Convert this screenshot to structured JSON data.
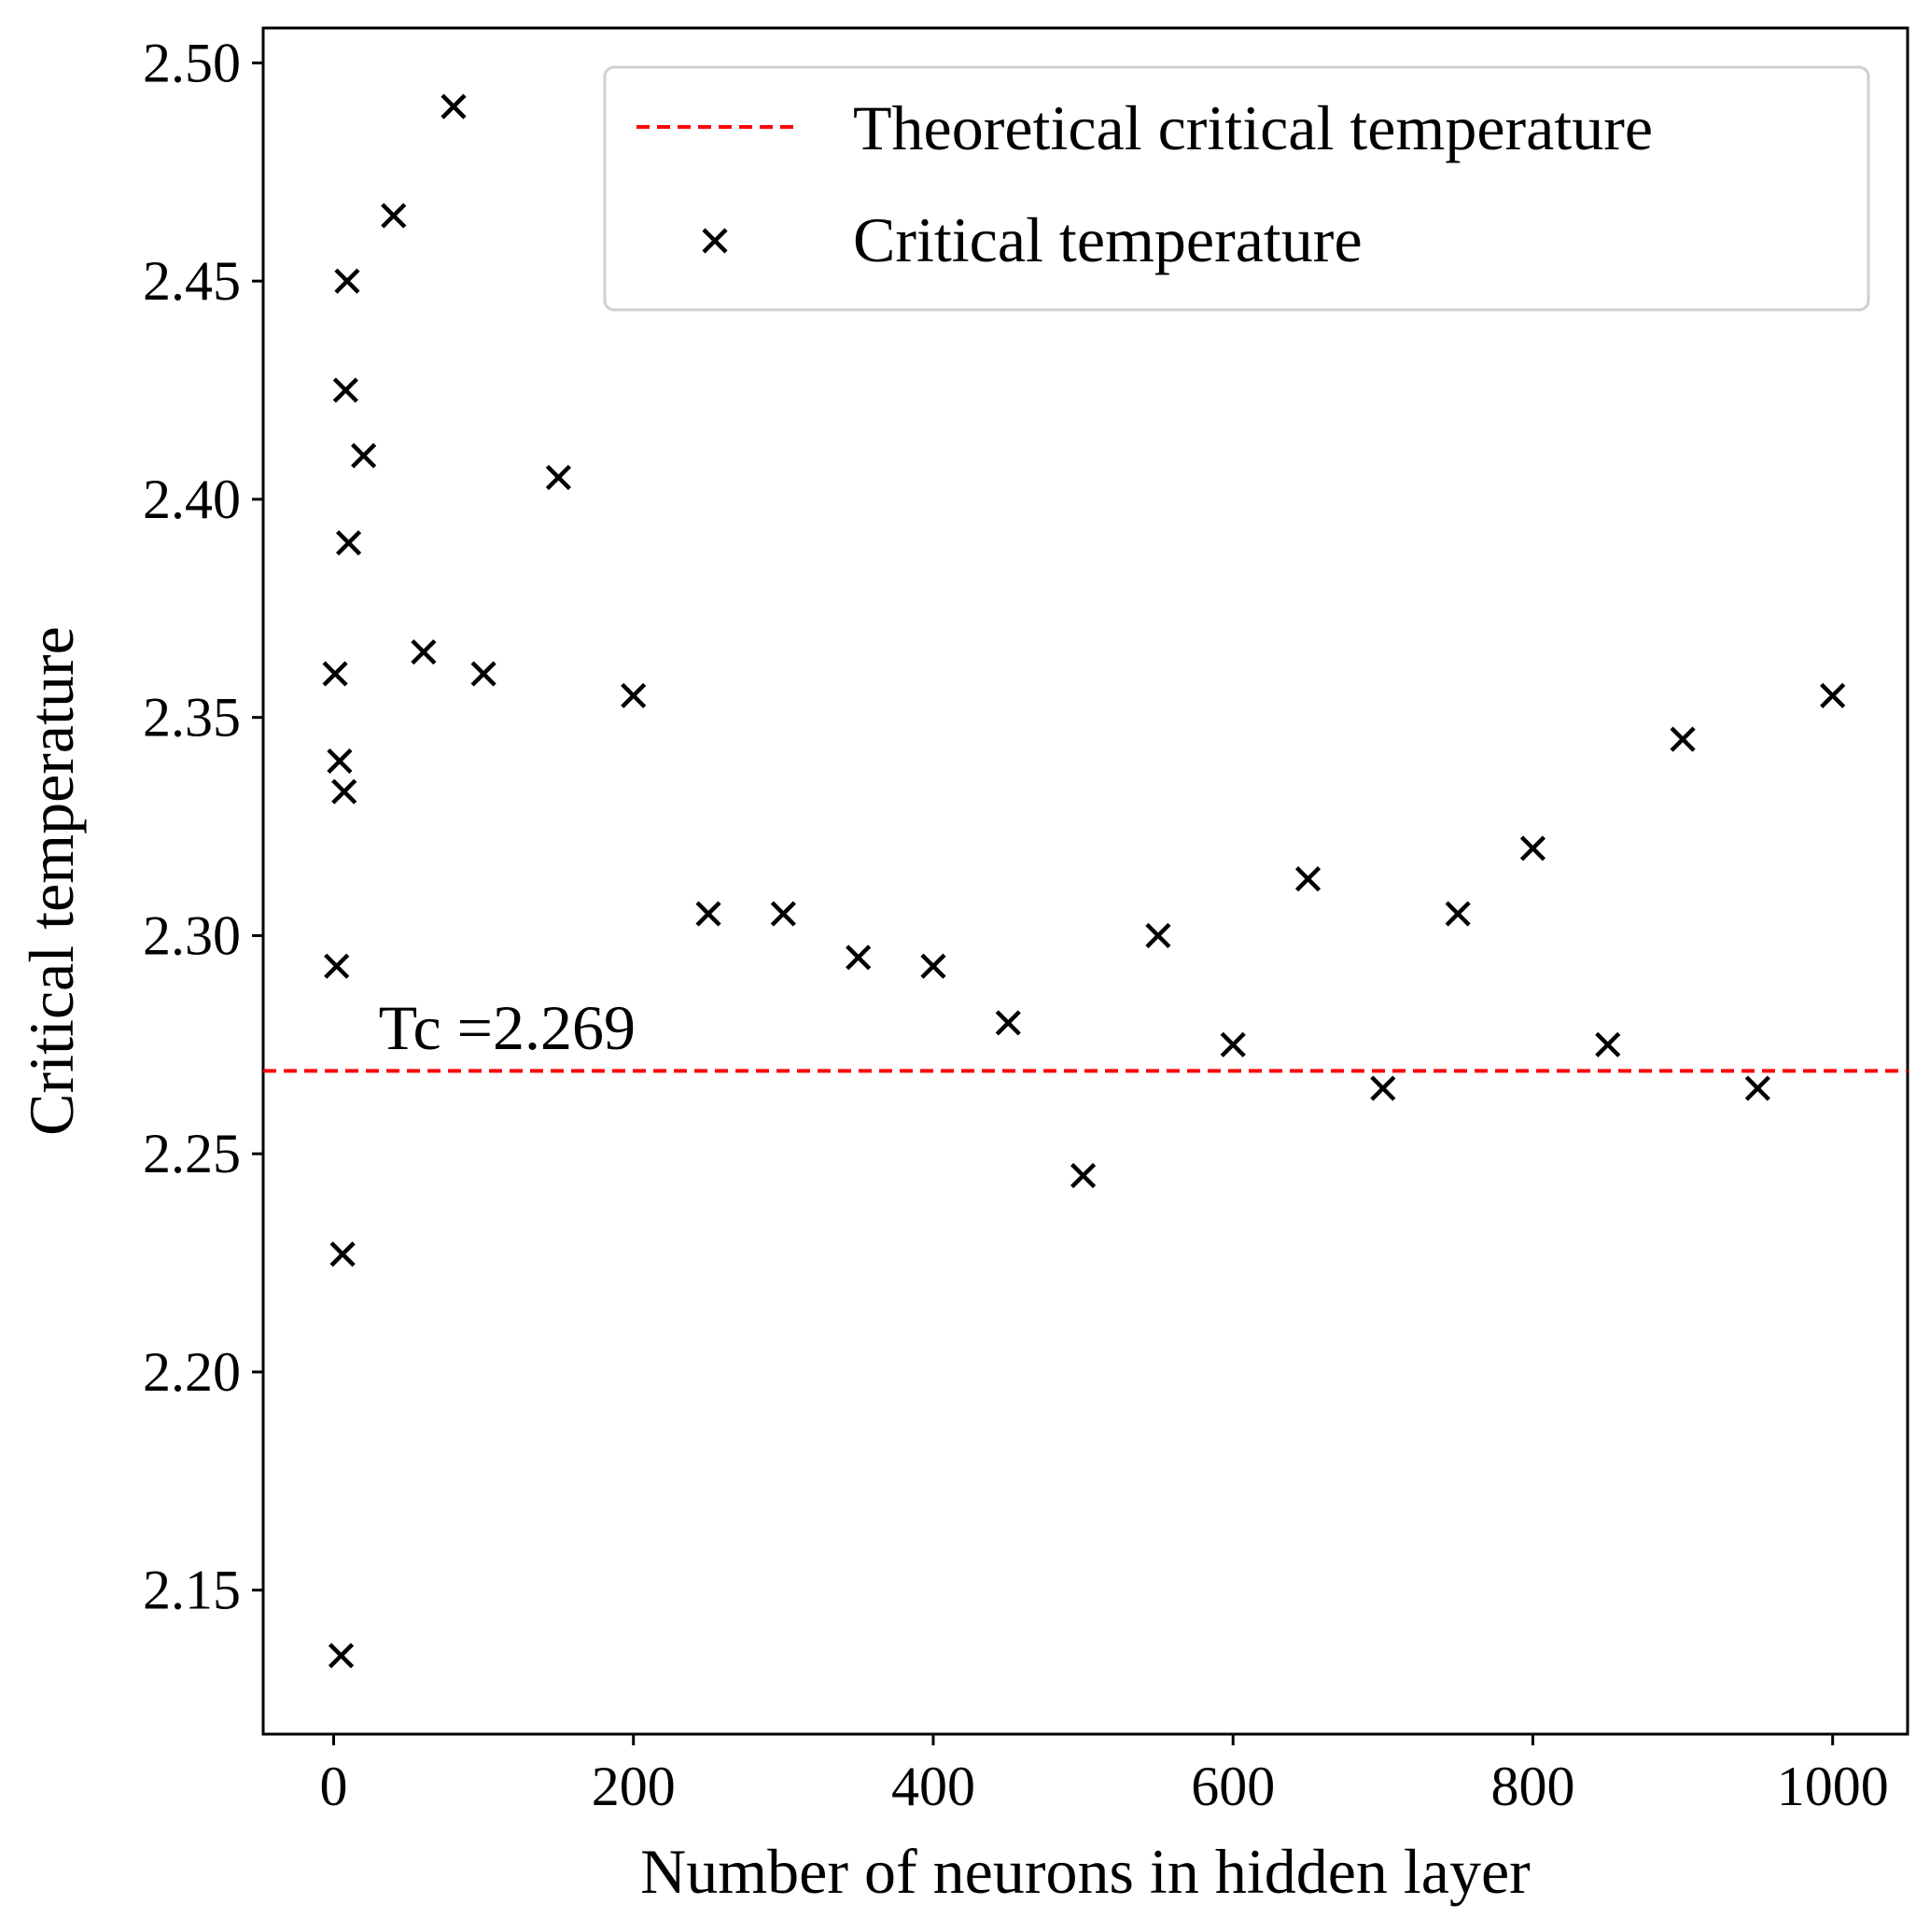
{
  "chart_data": {
    "type": "scatter",
    "xlabel": "Number of neurons in hidden layer",
    "ylabel": "Critical temperature",
    "xlim": [
      -47,
      1050
    ],
    "ylim": [
      2.117,
      2.508
    ],
    "xticks": [
      0,
      200,
      400,
      600,
      800,
      1000
    ],
    "xtick_labels": [
      "0",
      "200",
      "400",
      "600",
      "800",
      "1000"
    ],
    "yticks": [
      2.15,
      2.2,
      2.25,
      2.3,
      2.35,
      2.4,
      2.45,
      2.5
    ],
    "ytick_labels": [
      "2.15",
      "2.20",
      "2.25",
      "2.30",
      "2.35",
      "2.40",
      "2.45",
      "2.50"
    ],
    "grid": false,
    "legend_position": "top-right",
    "reference_line": {
      "name": "Theoretical critical temperature",
      "y": 2.269,
      "color": "#ff0000",
      "style": "dashed"
    },
    "annotation": {
      "text": "Tc =2.269",
      "x": 30,
      "y": 2.274
    },
    "series": [
      {
        "name": "Critical temperature",
        "marker": "x",
        "color": "#000000",
        "points": [
          {
            "x": 1,
            "y": 2.36
          },
          {
            "x": 2,
            "y": 2.293
          },
          {
            "x": 4,
            "y": 2.34
          },
          {
            "x": 5,
            "y": 2.135
          },
          {
            "x": 6,
            "y": 2.227
          },
          {
            "x": 7,
            "y": 2.333
          },
          {
            "x": 8,
            "y": 2.425
          },
          {
            "x": 9,
            "y": 2.45
          },
          {
            "x": 10,
            "y": 2.39
          },
          {
            "x": 20,
            "y": 2.41
          },
          {
            "x": 40,
            "y": 2.465
          },
          {
            "x": 60,
            "y": 2.365
          },
          {
            "x": 80,
            "y": 2.49
          },
          {
            "x": 100,
            "y": 2.36
          },
          {
            "x": 150,
            "y": 2.405
          },
          {
            "x": 200,
            "y": 2.355
          },
          {
            "x": 250,
            "y": 2.305
          },
          {
            "x": 300,
            "y": 2.305
          },
          {
            "x": 350,
            "y": 2.295
          },
          {
            "x": 400,
            "y": 2.293
          },
          {
            "x": 450,
            "y": 2.28
          },
          {
            "x": 500,
            "y": 2.245
          },
          {
            "x": 550,
            "y": 2.3
          },
          {
            "x": 600,
            "y": 2.275
          },
          {
            "x": 650,
            "y": 2.313
          },
          {
            "x": 700,
            "y": 2.265
          },
          {
            "x": 750,
            "y": 2.305
          },
          {
            "x": 800,
            "y": 2.32
          },
          {
            "x": 850,
            "y": 2.275
          },
          {
            "x": 900,
            "y": 2.345
          },
          {
            "x": 950,
            "y": 2.265
          },
          {
            "x": 1000,
            "y": 2.355
          }
        ]
      }
    ]
  }
}
